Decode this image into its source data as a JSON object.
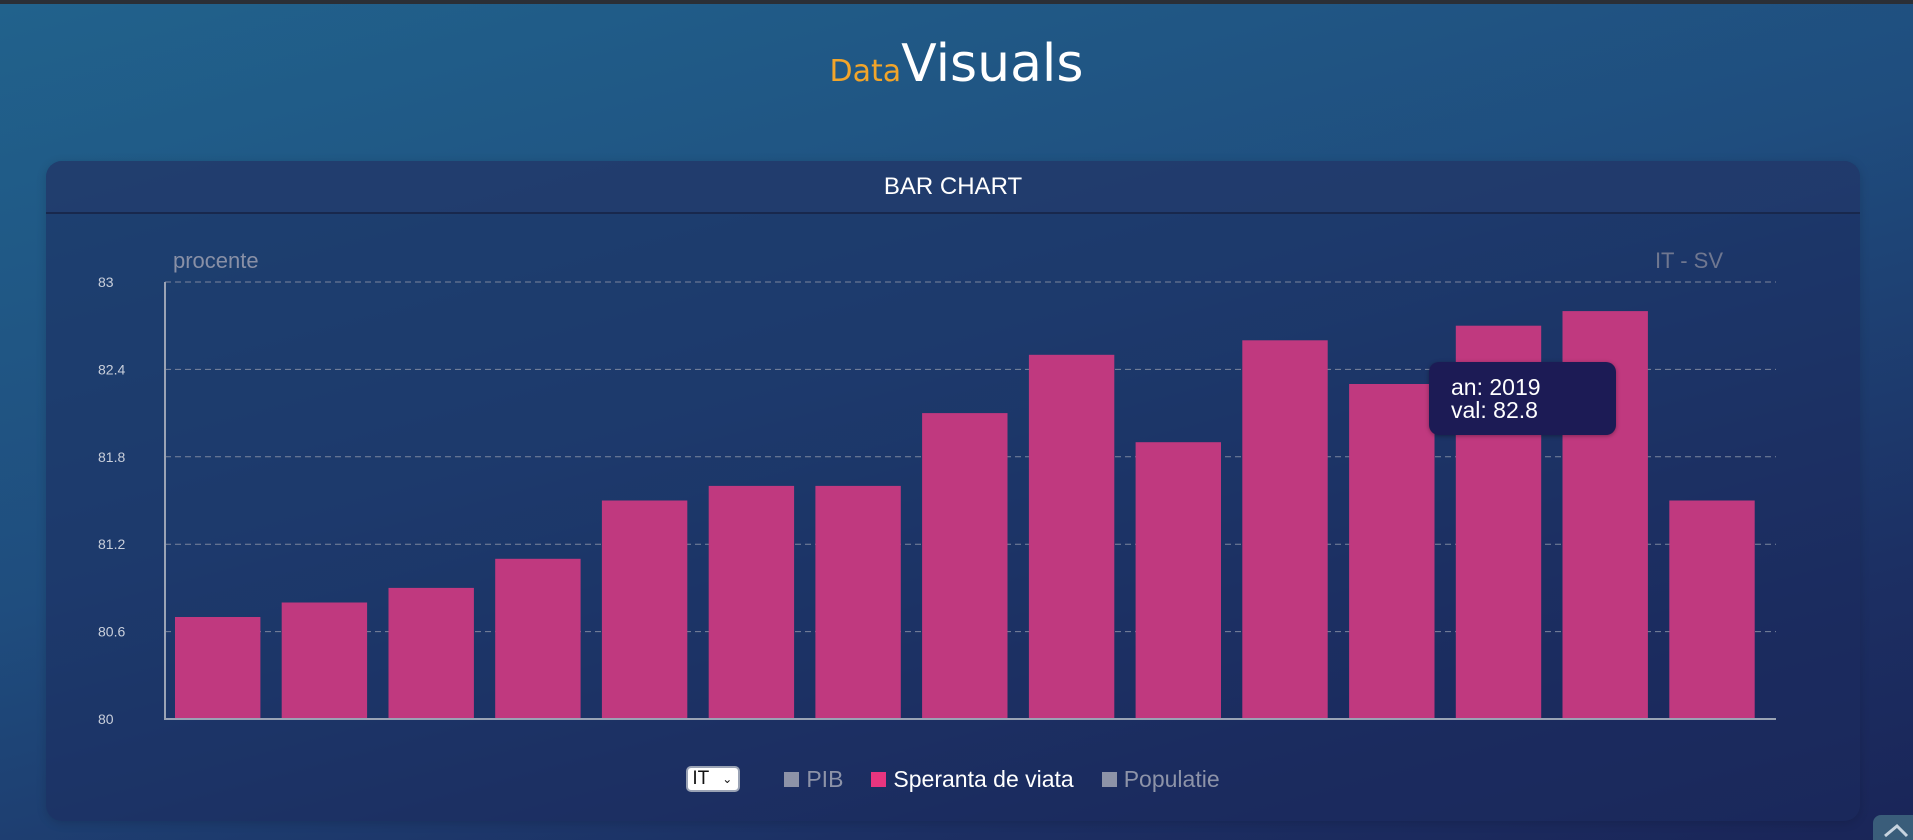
{
  "brand": {
    "small": "Data",
    "big": "Visuals"
  },
  "card": {
    "title": "BAR CHART"
  },
  "chart_data": {
    "type": "bar",
    "ylabel": "procente",
    "series_label": "IT - SV",
    "ylim": [
      80,
      83
    ],
    "yticks": [
      80,
      80.6,
      81.2,
      81.8,
      82.4,
      83
    ],
    "grid": true,
    "bar_color": "#c0397f",
    "series": [
      {
        "name": "Speranta de viata",
        "values": [
          80.7,
          80.8,
          80.9,
          81.1,
          81.5,
          81.6,
          81.6,
          82.1,
          82.5,
          81.9,
          82.6,
          82.3,
          82.7,
          82.8,
          81.5
        ]
      }
    ]
  },
  "tooltip": {
    "line1": "an: 2019",
    "line2": "val: 82.8"
  },
  "controls": {
    "country_select": "IT",
    "legend": [
      {
        "label": "PIB",
        "active": false
      },
      {
        "label": "Speranta de viata",
        "active": true,
        "color": "#e8357f"
      },
      {
        "label": "Populatie",
        "active": false
      }
    ]
  },
  "colors": {
    "accent": "#f2a52a",
    "bar": "#c0397f",
    "active_legend": "#e8357f"
  }
}
